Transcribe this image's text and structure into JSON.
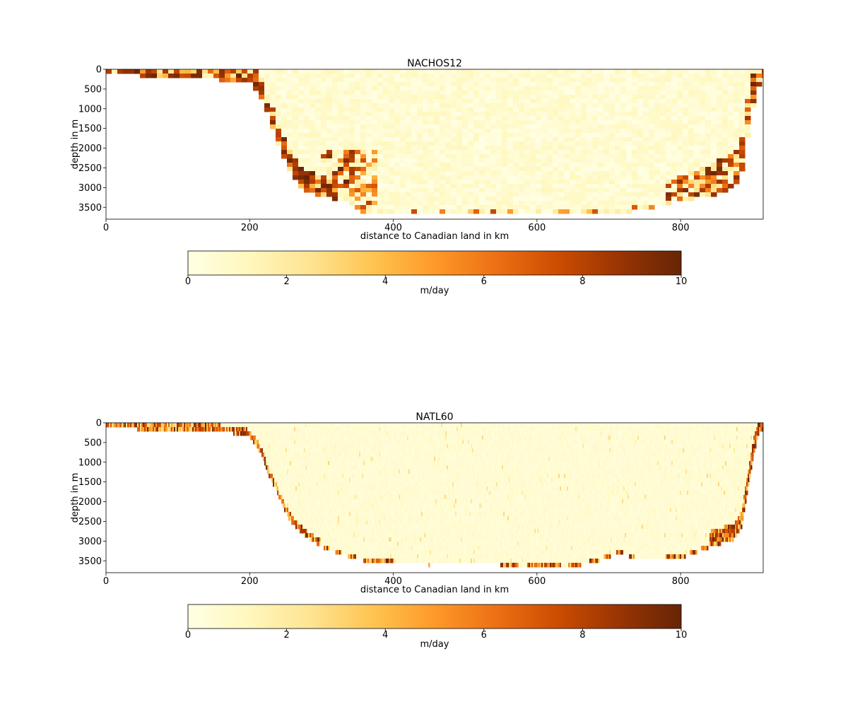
{
  "chart_data": [
    {
      "type": "heatmap",
      "title": "NACHOS12",
      "xlabel": "distance to Canadian land in km",
      "ylabel": "depth in m",
      "xlim": [
        0,
        915
      ],
      "ylim": [
        3800,
        0
      ],
      "xticks": [
        0,
        200,
        400,
        600,
        800
      ],
      "yticks": [
        0,
        500,
        1000,
        1500,
        2000,
        2500,
        3000,
        3500
      ],
      "resolution": "coarse",
      "bathymetry": [
        [
          0,
          0
        ],
        [
          20,
          40
        ],
        [
          60,
          140
        ],
        [
          120,
          170
        ],
        [
          180,
          250
        ],
        [
          200,
          300
        ],
        [
          215,
          600
        ],
        [
          225,
          1100
        ],
        [
          235,
          1600
        ],
        [
          245,
          2100
        ],
        [
          258,
          2600
        ],
        [
          275,
          3000
        ],
        [
          300,
          3150
        ],
        [
          340,
          3350
        ],
        [
          360,
          3600
        ],
        [
          720,
          3600
        ],
        [
          760,
          3450
        ],
        [
          800,
          3300
        ],
        [
          840,
          3150
        ],
        [
          870,
          3000
        ],
        [
          885,
          2600
        ],
        [
          895,
          1500
        ],
        [
          905,
          600
        ],
        [
          915,
          150
        ]
      ],
      "colorbar": {
        "label": "m/day",
        "range": [
          0,
          10
        ],
        "ticks": [
          0,
          2,
          4,
          6,
          8,
          10
        ],
        "colormap": "YlOrBr",
        "stops": [
          "#ffffe5",
          "#fff7bc",
          "#fee391",
          "#fec44f",
          "#fe9929",
          "#ec7014",
          "#cc4c02",
          "#993404",
          "#662506"
        ]
      }
    },
    {
      "type": "heatmap",
      "title": "NATL60",
      "xlabel": "distance to Canadian land in km",
      "ylabel": "depth in m",
      "xlim": [
        0,
        915
      ],
      "ylim": [
        3800,
        0
      ],
      "xticks": [
        0,
        200,
        400,
        600,
        800
      ],
      "yticks": [
        0,
        500,
        1000,
        1500,
        2000,
        2500,
        3000,
        3500
      ],
      "resolution": "fine",
      "bathymetry": [
        [
          0,
          0
        ],
        [
          30,
          60
        ],
        [
          60,
          160
        ],
        [
          100,
          130
        ],
        [
          150,
          160
        ],
        [
          180,
          220
        ],
        [
          200,
          300
        ],
        [
          215,
          700
        ],
        [
          225,
          1200
        ],
        [
          240,
          1800
        ],
        [
          255,
          2400
        ],
        [
          275,
          2800
        ],
        [
          300,
          3100
        ],
        [
          330,
          3300
        ],
        [
          360,
          3450
        ],
        [
          400,
          3500
        ],
        [
          450,
          3550
        ],
        [
          500,
          3520
        ],
        [
          550,
          3550
        ],
        [
          580,
          3620
        ],
        [
          610,
          3560
        ],
        [
          640,
          3620
        ],
        [
          680,
          3480
        ],
        [
          715,
          3250
        ],
        [
          740,
          3420
        ],
        [
          800,
          3380
        ],
        [
          840,
          3100
        ],
        [
          875,
          2900
        ],
        [
          885,
          2600
        ],
        [
          895,
          1500
        ],
        [
          902,
          700
        ],
        [
          910,
          150
        ],
        [
          915,
          100
        ]
      ],
      "colorbar": {
        "label": "m/day",
        "range": [
          0,
          10
        ],
        "ticks": [
          0,
          2,
          4,
          6,
          8,
          10
        ],
        "colormap": "YlOrBr",
        "stops": [
          "#ffffe5",
          "#fff7bc",
          "#fee391",
          "#fec44f",
          "#fe9929",
          "#ec7014",
          "#cc4c02",
          "#993404",
          "#662506"
        ]
      }
    }
  ]
}
